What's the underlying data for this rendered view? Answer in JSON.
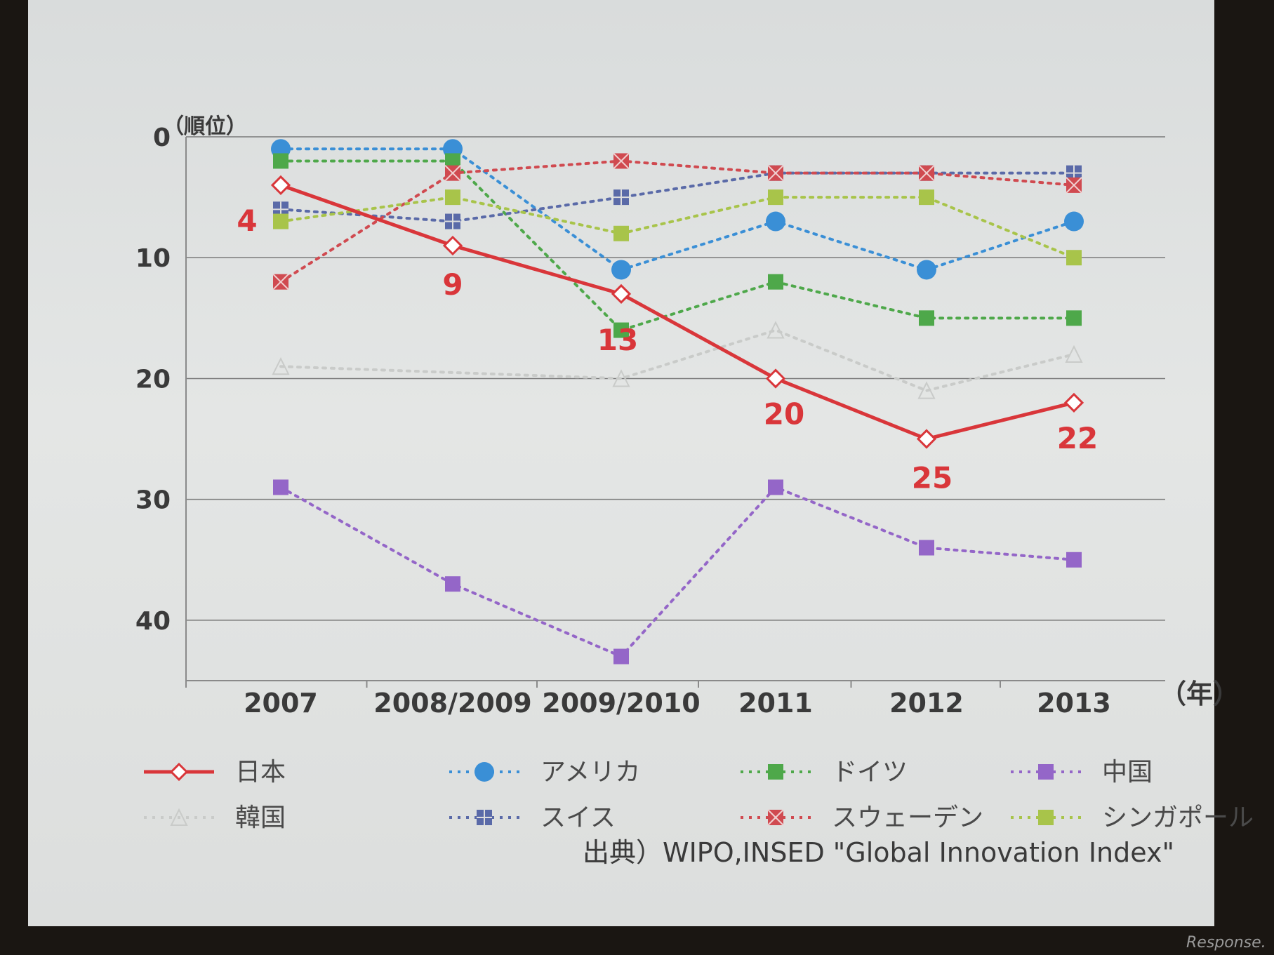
{
  "chart_data": {
    "type": "line",
    "y_unit_label": "（順位）",
    "x_unit_label": "（年）",
    "categories": [
      "2007",
      "2008/2009",
      "2009/2010",
      "2011",
      "2012",
      "2013"
    ],
    "ylim": [
      0,
      45
    ],
    "y_inverted": true,
    "y_ticks": [
      "0",
      "10",
      "20",
      "30",
      "40"
    ],
    "grid": true,
    "series": [
      {
        "name": "日本",
        "values": [
          4,
          9,
          13,
          20,
          25,
          22
        ],
        "color": "#d9363a",
        "style": "solid",
        "marker": "diamond-open",
        "data_labels": [
          "4",
          "9",
          "13",
          "20",
          "25",
          "22"
        ]
      },
      {
        "name": "アメリカ",
        "values": [
          1,
          1,
          11,
          7,
          11,
          7
        ],
        "color": "#3a8fd6",
        "style": "dotted",
        "marker": "circle"
      },
      {
        "name": "ドイツ",
        "values": [
          2,
          2,
          16,
          12,
          15,
          15
        ],
        "color": "#4ea84a",
        "style": "dotted",
        "marker": "square"
      },
      {
        "name": "中国",
        "values": [
          29,
          37,
          43,
          29,
          34,
          35
        ],
        "color": "#9466c8",
        "style": "dotted",
        "marker": "square"
      },
      {
        "name": "韓国",
        "values": [
          19,
          null,
          20,
          16,
          21,
          18
        ],
        "color": "#c9cbc9",
        "style": "dotted",
        "marker": "triangle-open"
      },
      {
        "name": "スイス",
        "values": [
          6,
          7,
          5,
          3,
          3,
          3
        ],
        "color": "#5a6aa8",
        "style": "dotted",
        "marker": "grid-square"
      },
      {
        "name": "スウェーデン",
        "values": [
          12,
          3,
          2,
          3,
          3,
          4
        ],
        "color": "#d04a50",
        "style": "dotted",
        "marker": "x-square"
      },
      {
        "name": "シンガポール",
        "values": [
          7,
          5,
          8,
          5,
          5,
          10
        ],
        "color": "#a8c44a",
        "style": "dotted",
        "marker": "square"
      }
    ],
    "legend_position": "bottom",
    "source": "出典）WIPO,INSED \"Global Innovation Index\""
  },
  "watermark": "Response."
}
